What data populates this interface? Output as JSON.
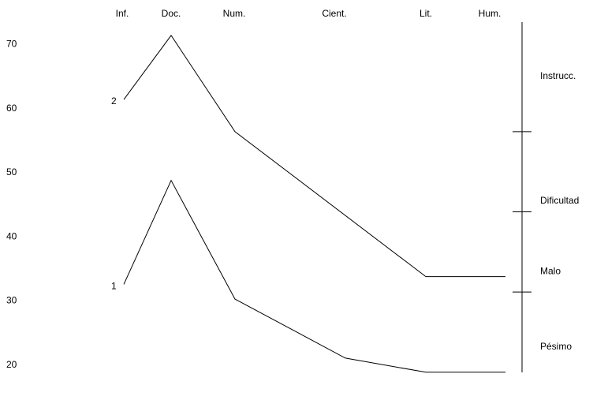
{
  "chart_data": {
    "type": "line",
    "categories": [
      "Inf.",
      "Doc.",
      "Num.",
      "Cient.",
      "Lit.",
      "Hum."
    ],
    "y_ticks": [
      70,
      60,
      50,
      40,
      30,
      20
    ],
    "ylim": [
      20,
      70
    ],
    "grid": false,
    "series": [
      {
        "name": "2",
        "points": [
          {
            "x": "Inf.",
            "y": 61.3
          },
          {
            "x": "Doc.",
            "y": 71.3
          },
          {
            "x": "Num.",
            "y": 56.3
          },
          {
            "x": "Lit.",
            "y": 33.7
          },
          {
            "x": "Hum.",
            "y": 33.7
          }
        ]
      },
      {
        "name": "1",
        "points": [
          {
            "x": "Inf.",
            "y": 32.5
          },
          {
            "x": "Doc.",
            "y": 48.7
          },
          {
            "x": "Num.",
            "y": 30.2
          },
          {
            "x": "Cient.",
            "y": 21.0
          },
          {
            "x": "Lit.",
            "y": 18.8
          },
          {
            "x": "Hum.",
            "y": 18.8
          }
        ]
      }
    ],
    "scale": {
      "boundaries": [
        56.3,
        43.8,
        31.3
      ],
      "bands": [
        {
          "label": "Instrucc.",
          "center": 65.0
        },
        {
          "label": "Dificultad",
          "center": 45.6
        },
        {
          "label": "Malo",
          "center": 34.6
        },
        {
          "label": "Pésimo",
          "center": 22.8
        }
      ]
    },
    "colors": {
      "line": "#000000",
      "background": "#ffffff"
    }
  }
}
